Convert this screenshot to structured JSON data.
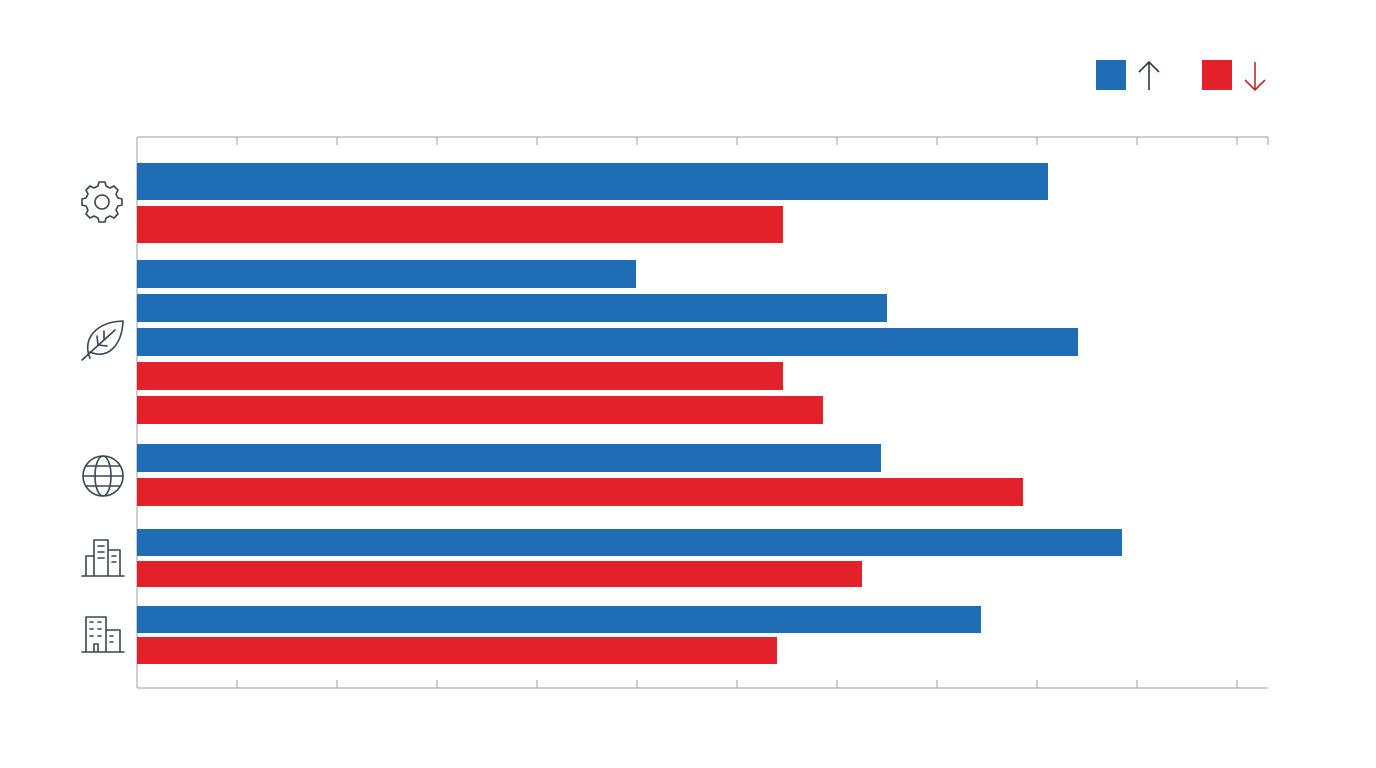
{
  "chart_data": {
    "type": "bar",
    "orientation": "horizontal",
    "xlim": [
      0,
      11.31
    ],
    "xticks": [
      0,
      1,
      2,
      3,
      4,
      5,
      6,
      7,
      8,
      9,
      10,
      11
    ],
    "legend": {
      "position": "top-right",
      "colors": [
        "#1f6db5",
        "#e3212b"
      ]
    },
    "groups": [
      {
        "bars": [
          {
            "value": 9.11,
            "color": "#1f6db5"
          },
          {
            "value": 6.46,
            "color": "#e3212b"
          }
        ]
      },
      {
        "bars": [
          {
            "value": 4.99,
            "color": "#1f6db5"
          },
          {
            "value": 7.5,
            "color": "#1f6db5"
          },
          {
            "value": 9.41,
            "color": "#1f6db5"
          },
          {
            "value": 6.46,
            "color": "#e3212b"
          },
          {
            "value": 6.86,
            "color": "#e3212b"
          }
        ]
      },
      {
        "bars": [
          {
            "value": 7.44,
            "color": "#1f6db5"
          },
          {
            "value": 8.86,
            "color": "#e3212b"
          }
        ]
      },
      {
        "bars": [
          {
            "value": 9.85,
            "color": "#1f6db5"
          },
          {
            "value": 7.25,
            "color": "#e3212b"
          }
        ]
      },
      {
        "bars": [
          {
            "value": 8.44,
            "color": "#1f6db5"
          },
          {
            "value": 6.4,
            "color": "#e3212b"
          }
        ]
      }
    ]
  }
}
